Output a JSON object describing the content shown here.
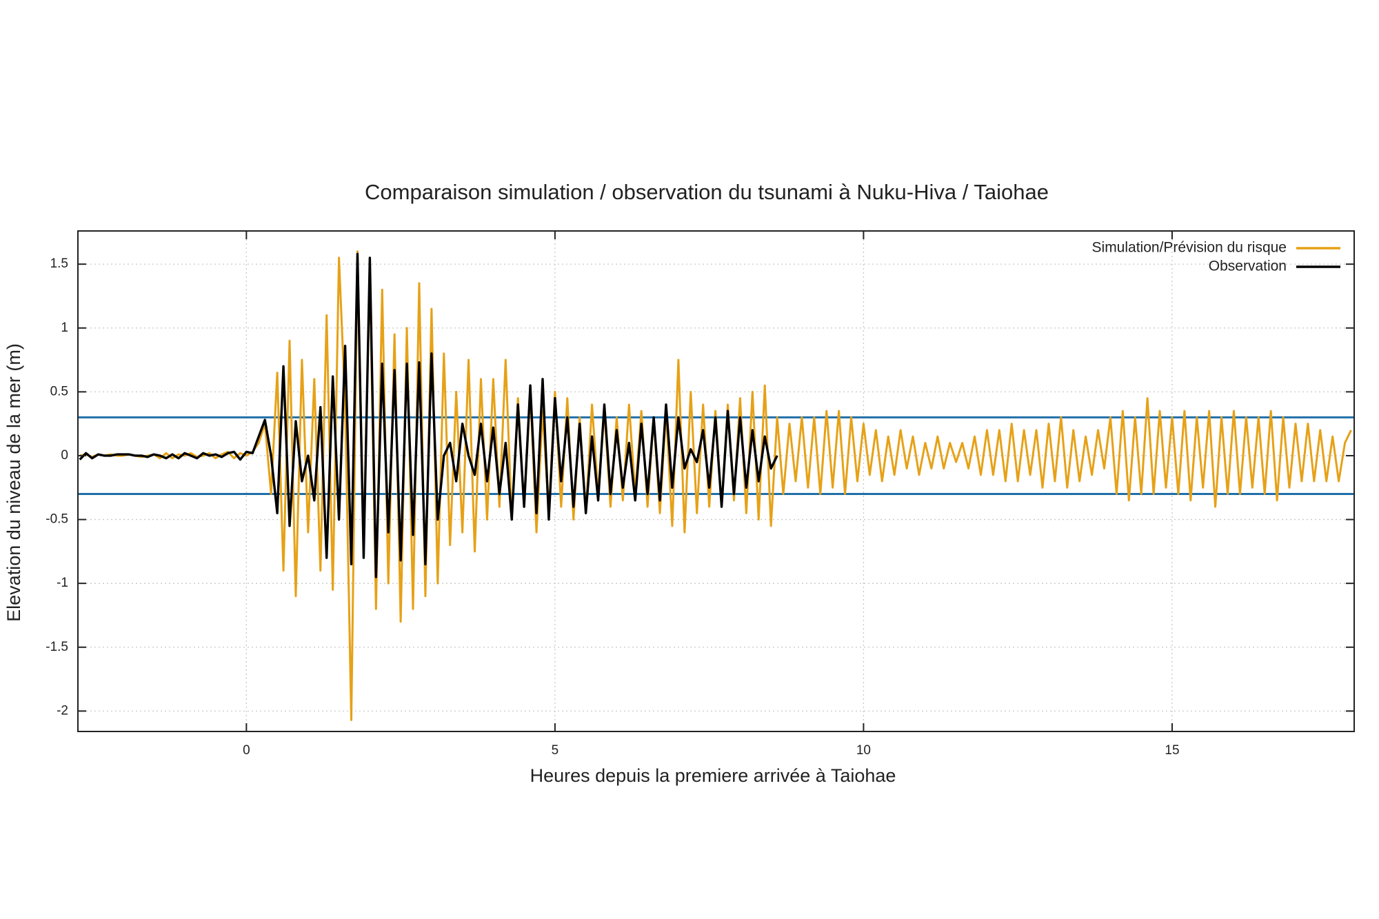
{
  "chart_data": {
    "type": "line",
    "title": "Comparaison simulation / observation du tsunami à Nuku-Hiva / Taiohae",
    "x_label": "Heures depuis la premiere arrivée à Taiohae",
    "y_label": "Elevation du niveau de la mer (m)",
    "xlim": [
      -2.73,
      17.95
    ],
    "ylim": [
      -2.16,
      1.76
    ],
    "xticks": [
      0,
      5,
      10,
      15
    ],
    "yticks": [
      -2,
      -1.5,
      -1,
      -0.5,
      0,
      0.5,
      1,
      1.5
    ],
    "grid": true,
    "legend": "top-right",
    "reference_lines": [
      {
        "value": 0.3,
        "color": "#1f6fa8"
      },
      {
        "value": -0.3,
        "color": "#1f6fa8"
      }
    ],
    "series": [
      {
        "name": "Simulation/Prévision du risque",
        "color": "#e6a117",
        "x": [
          -2.7,
          -2.6,
          -2.5,
          -2.4,
          -2.3,
          -2.2,
          -2.1,
          -2,
          -1.9,
          -1.8,
          -1.7,
          -1.6,
          -1.5,
          -1.4,
          -1.3,
          -1.2,
          -1.1,
          -1,
          -0.9,
          -0.8,
          -0.7,
          -0.6,
          -0.5,
          -0.4,
          -0.3,
          -0.2,
          -0.1,
          0,
          0.1,
          0.2,
          0.3,
          0.4,
          0.5,
          0.6,
          0.7,
          0.8,
          0.9,
          1,
          1.1,
          1.2,
          1.3,
          1.4,
          1.5,
          1.6,
          1.7,
          1.8,
          1.9,
          2,
          2.1,
          2.2,
          2.3,
          2.4,
          2.5,
          2.6,
          2.7,
          2.8,
          2.9,
          3,
          3.1,
          3.2,
          3.3,
          3.4,
          3.5,
          3.6,
          3.7,
          3.8,
          3.9,
          4,
          4.1,
          4.2,
          4.3,
          4.4,
          4.5,
          4.6,
          4.7,
          4.8,
          4.9,
          5,
          5.1,
          5.2,
          5.3,
          5.4,
          5.5,
          5.6,
          5.7,
          5.8,
          5.9,
          6,
          6.1,
          6.2,
          6.3,
          6.4,
          6.5,
          6.6,
          6.7,
          6.8,
          6.9,
          7,
          7.1,
          7.2,
          7.3,
          7.4,
          7.5,
          7.6,
          7.7,
          7.8,
          7.9,
          8,
          8.1,
          8.2,
          8.3,
          8.4,
          8.5,
          8.6,
          8.7,
          8.8,
          8.9,
          9,
          9.1,
          9.2,
          9.3,
          9.4,
          9.5,
          9.6,
          9.7,
          9.8,
          9.9,
          10,
          10.1,
          10.2,
          10.3,
          10.4,
          10.5,
          10.6,
          10.7,
          10.8,
          10.9,
          11,
          11.1,
          11.2,
          11.3,
          11.4,
          11.5,
          11.6,
          11.7,
          11.8,
          11.9,
          12,
          12.1,
          12.2,
          12.3,
          12.4,
          12.5,
          12.6,
          12.7,
          12.8,
          12.9,
          13,
          13.1,
          13.2,
          13.3,
          13.4,
          13.5,
          13.6,
          13.7,
          13.8,
          13.9,
          14,
          14.1,
          14.2,
          14.3,
          14.4,
          14.5,
          14.6,
          14.7,
          14.8,
          14.9,
          15,
          15.1,
          15.2,
          15.3,
          15.4,
          15.5,
          15.6,
          15.7,
          15.8,
          15.9,
          16,
          16.1,
          16.2,
          16.3,
          16.4,
          16.5,
          16.6,
          16.7,
          16.8,
          16.9,
          17,
          17.1,
          17.2,
          17.3,
          17.4,
          17.5,
          17.6,
          17.7,
          17.8,
          17.9
        ],
        "values": [
          0,
          0.01,
          -0.01,
          0.01,
          0,
          0.01,
          0,
          0,
          0.01,
          0,
          -0.01,
          0,
          0.01,
          -0.02,
          0.02,
          -0.02,
          0.01,
          0,
          0.02,
          -0.01,
          0,
          0.02,
          -0.02,
          0.01,
          0.03,
          -0.02,
          0.02,
          0,
          0.03,
          0.1,
          0.25,
          -0.3,
          0.65,
          -0.9,
          0.9,
          -1.1,
          0.75,
          -0.6,
          0.6,
          -0.9,
          1.1,
          -1.05,
          1.55,
          0.4,
          -2.07,
          1.6,
          -0.7,
          1.45,
          -1.2,
          1.3,
          -1,
          0.95,
          -1.3,
          1,
          -1.2,
          1.35,
          -1.1,
          1.15,
          -1,
          0.8,
          -0.7,
          0.5,
          -0.6,
          0.75,
          -0.75,
          0.6,
          -0.5,
          0.6,
          -0.4,
          0.75,
          -0.5,
          0.45,
          -0.4,
          0.5,
          -0.6,
          0.35,
          -0.45,
          0.5,
          -0.4,
          0.45,
          -0.5,
          0.3,
          -0.45,
          0.4,
          -0.3,
          0.35,
          -0.4,
          0.3,
          -0.35,
          0.4,
          -0.3,
          0.35,
          -0.4,
          0.3,
          -0.45,
          0.35,
          -0.55,
          0.75,
          -0.6,
          0.5,
          -0.45,
          0.4,
          -0.4,
          0.35,
          -0.4,
          0.4,
          -0.35,
          0.45,
          -0.45,
          0.5,
          -0.5,
          0.55,
          -0.55,
          0.3,
          -0.3,
          0.25,
          -0.2,
          0.3,
          -0.25,
          0.3,
          -0.3,
          0.35,
          -0.25,
          0.35,
          -0.3,
          0.3,
          -0.2,
          0.25,
          -0.15,
          0.2,
          -0.2,
          0.15,
          -0.15,
          0.2,
          -0.1,
          0.15,
          -0.15,
          0.1,
          -0.1,
          0.15,
          -0.1,
          0.1,
          -0.05,
          0.1,
          -0.1,
          0.15,
          -0.15,
          0.2,
          -0.15,
          0.2,
          -0.2,
          0.25,
          -0.2,
          0.2,
          -0.15,
          0.2,
          -0.25,
          0.25,
          -0.2,
          0.3,
          -0.25,
          0.2,
          -0.2,
          0.15,
          -0.15,
          0.2,
          -0.1,
          0.3,
          -0.3,
          0.35,
          -0.35,
          0.3,
          -0.3,
          0.45,
          -0.3,
          0.35,
          -0.25,
          0.3,
          -0.3,
          0.35,
          -0.35,
          0.3,
          -0.25,
          0.35,
          -0.4,
          0.3,
          -0.3,
          0.35,
          -0.3,
          0.3,
          -0.25,
          0.3,
          -0.3,
          0.35,
          -0.35,
          0.3,
          -0.25,
          0.25,
          -0.2,
          0.25,
          -0.2,
          0.2,
          -0.2,
          0.15,
          -0.2,
          0.1,
          0.2
        ]
      },
      {
        "name": "Observation",
        "color": "#000000",
        "x": [
          -2.7,
          -2.6,
          -2.5,
          -2.4,
          -2.3,
          -2.2,
          -2.1,
          -2,
          -1.9,
          -1.8,
          -1.7,
          -1.6,
          -1.5,
          -1.4,
          -1.3,
          -1.2,
          -1.1,
          -1,
          -0.9,
          -0.8,
          -0.7,
          -0.6,
          -0.5,
          -0.4,
          -0.3,
          -0.2,
          -0.1,
          0,
          0.1,
          0.2,
          0.3,
          0.4,
          0.5,
          0.6,
          0.7,
          0.8,
          0.9,
          1,
          1.1,
          1.2,
          1.3,
          1.4,
          1.5,
          1.6,
          1.7,
          1.8,
          1.9,
          2,
          2.1,
          2.2,
          2.3,
          2.4,
          2.5,
          2.6,
          2.7,
          2.8,
          2.9,
          3,
          3.1,
          3.2,
          3.3,
          3.4,
          3.5,
          3.6,
          3.7,
          3.8,
          3.9,
          4,
          4.1,
          4.2,
          4.3,
          4.4,
          4.5,
          4.6,
          4.7,
          4.8,
          4.9,
          5,
          5.1,
          5.2,
          5.3,
          5.4,
          5.5,
          5.6,
          5.7,
          5.8,
          5.9,
          6,
          6.1,
          6.2,
          6.3,
          6.4,
          6.5,
          6.6,
          6.7,
          6.8,
          6.9,
          7,
          7.1,
          7.2,
          7.3,
          7.4,
          7.5,
          7.6,
          7.7,
          7.8,
          7.9,
          8,
          8.1,
          8.2,
          8.3,
          8.4,
          8.5,
          8.6
        ],
        "values": [
          -0.03,
          0.02,
          -0.02,
          0.01,
          0,
          0,
          0.01,
          0.01,
          0.01,
          0,
          0,
          -0.01,
          0.01,
          0,
          -0.02,
          0.01,
          -0.02,
          0.02,
          0,
          -0.02,
          0.02,
          0,
          0.01,
          -0.01,
          0.02,
          0.03,
          -0.03,
          0.03,
          0.02,
          0.15,
          0.28,
          0,
          -0.45,
          0.7,
          -0.55,
          0.27,
          -0.2,
          0,
          -0.35,
          0.38,
          -0.8,
          0.62,
          -0.5,
          0.86,
          -0.85,
          1.58,
          -0.8,
          1.55,
          -0.95,
          0.72,
          -0.6,
          0.67,
          -0.82,
          0.72,
          -0.62,
          0.73,
          -0.85,
          0.8,
          -0.5,
          0,
          0.1,
          -0.2,
          0.25,
          0,
          -0.15,
          0.25,
          -0.2,
          0.22,
          -0.3,
          0.1,
          -0.5,
          0.4,
          -0.4,
          0.55,
          -0.45,
          0.6,
          -0.5,
          0.45,
          -0.2,
          0.3,
          -0.4,
          0.25,
          -0.45,
          0.15,
          -0.35,
          0.4,
          -0.3,
          0.2,
          -0.25,
          0.1,
          -0.35,
          0.25,
          -0.3,
          0.3,
          -0.35,
          0.4,
          -0.25,
          0.3,
          -0.1,
          0.05,
          -0.05,
          0.2,
          -0.25,
          0.3,
          -0.4,
          0.35,
          -0.3,
          0.3,
          -0.25,
          0.2,
          -0.2,
          0.15,
          -0.1,
          0
        ]
      }
    ]
  }
}
